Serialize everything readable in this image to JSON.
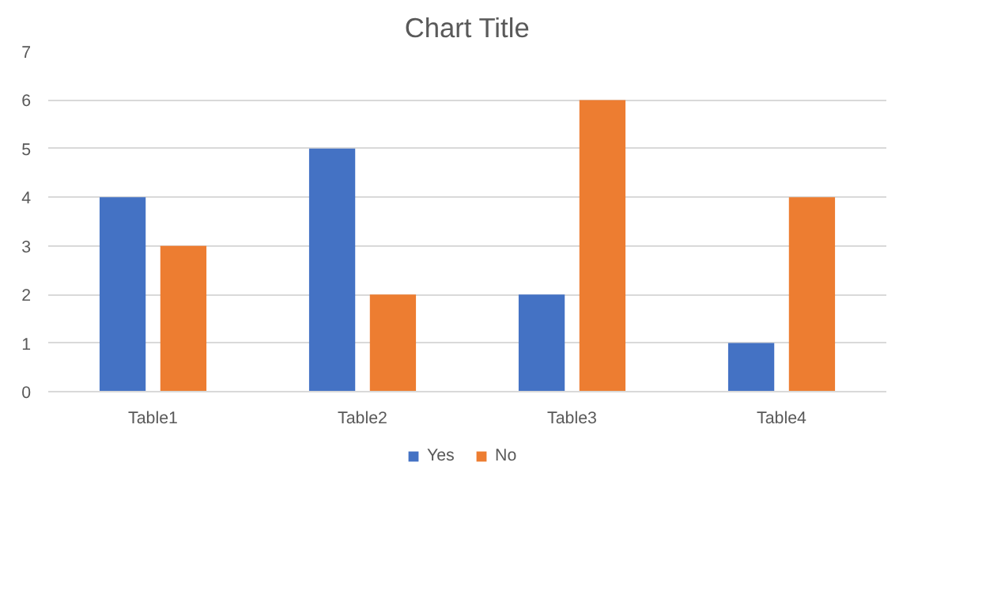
{
  "chart_data": {
    "type": "bar",
    "title": "Chart Title",
    "categories": [
      "Table1",
      "Table2",
      "Table3",
      "Table4"
    ],
    "series": [
      {
        "name": "Yes",
        "color": "#4472c4",
        "values": [
          4,
          5,
          2,
          1
        ]
      },
      {
        "name": "No",
        "color": "#ed7d31",
        "values": [
          3,
          2,
          6,
          4
        ]
      }
    ],
    "ylim": [
      0,
      7
    ],
    "yticks": [
      0,
      1,
      2,
      3,
      4,
      5,
      6,
      7
    ],
    "grid": "y",
    "legend": "bottom"
  }
}
